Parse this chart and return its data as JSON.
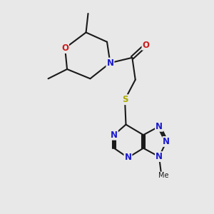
{
  "background_color": "#e8e8e8",
  "bond_color": "#1a1a1a",
  "atom_colors": {
    "N": "#1a1acc",
    "O": "#cc1a1a",
    "S": "#aaaa00",
    "C": "#1a1a1a"
  },
  "figsize": [
    3.0,
    3.0
  ],
  "dpi": 100,
  "xlim": [
    0,
    10
  ],
  "ylim": [
    0,
    10
  ]
}
